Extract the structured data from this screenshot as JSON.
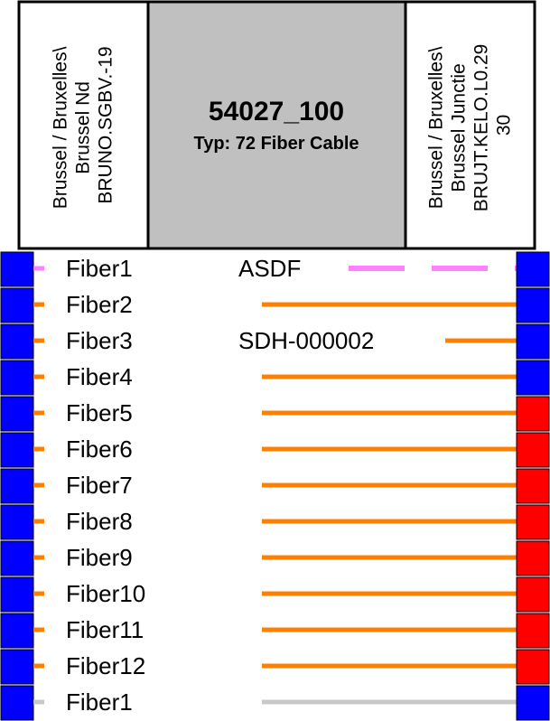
{
  "left_site": {
    "lines": [
      "Brussel / Bruxelles\\",
      "Brussel Nd",
      "BRUNO.SGBV.-19"
    ]
  },
  "cable": {
    "title": "54027_100",
    "type_label": "Typ: 72 Fiber Cable"
  },
  "right_site": {
    "lines": [
      "Brussel / Bruxelles\\",
      "Brussel Junctie",
      "BRUJT.KELO.L0.29",
      "30"
    ]
  },
  "colors": {
    "header_fill": "#ffffff",
    "cable_fill": "#c0c0c0",
    "border": "#000000",
    "port_blue": "#0000ff",
    "port_red": "#ff0000",
    "fiber_orange": "#ff8000",
    "fiber_pink": "#ff80ff",
    "fiber_gray": "#c8c8c8"
  },
  "fibers": [
    {
      "label": "Fiber1",
      "circuit": "ASDF",
      "line_style": "dashed",
      "line_color": "pink",
      "left_port": "blue",
      "right_port": "blue"
    },
    {
      "label": "Fiber2",
      "circuit": "",
      "line_style": "solid",
      "line_color": "orange",
      "left_port": "blue",
      "right_port": "blue"
    },
    {
      "label": "Fiber3",
      "circuit": "SDH-000002",
      "line_style": "solid",
      "line_color": "orange",
      "left_port": "blue",
      "right_port": "blue"
    },
    {
      "label": "Fiber4",
      "circuit": "",
      "line_style": "solid",
      "line_color": "orange",
      "left_port": "blue",
      "right_port": "blue"
    },
    {
      "label": "Fiber5",
      "circuit": "",
      "line_style": "solid",
      "line_color": "orange",
      "left_port": "blue",
      "right_port": "red"
    },
    {
      "label": "Fiber6",
      "circuit": "",
      "line_style": "solid",
      "line_color": "orange",
      "left_port": "blue",
      "right_port": "red"
    },
    {
      "label": "Fiber7",
      "circuit": "",
      "line_style": "solid",
      "line_color": "orange",
      "left_port": "blue",
      "right_port": "red"
    },
    {
      "label": "Fiber8",
      "circuit": "",
      "line_style": "solid",
      "line_color": "orange",
      "left_port": "blue",
      "right_port": "red"
    },
    {
      "label": "Fiber9",
      "circuit": "",
      "line_style": "solid",
      "line_color": "orange",
      "left_port": "blue",
      "right_port": "red"
    },
    {
      "label": "Fiber10",
      "circuit": "",
      "line_style": "solid",
      "line_color": "orange",
      "left_port": "blue",
      "right_port": "red"
    },
    {
      "label": "Fiber11",
      "circuit": "",
      "line_style": "solid",
      "line_color": "orange",
      "left_port": "blue",
      "right_port": "red"
    },
    {
      "label": "Fiber12",
      "circuit": "",
      "line_style": "solid",
      "line_color": "orange",
      "left_port": "blue",
      "right_port": "red"
    },
    {
      "label": "Fiber1",
      "circuit": "",
      "line_style": "solid",
      "line_color": "gray",
      "left_port": "blue",
      "right_port": "blue"
    }
  ]
}
